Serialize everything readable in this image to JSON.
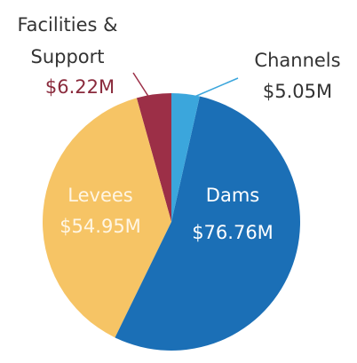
{
  "chart_data": {
    "type": "pie",
    "categories": [
      "Channels",
      "Dams",
      "Levees",
      "Facilities & Support"
    ],
    "values": [
      5.05,
      76.76,
      54.95,
      6.22
    ],
    "value_labels": [
      "$5.05M",
      "$76.76M",
      "$54.95M",
      "$6.22M"
    ],
    "colors": [
      "#3ba6dc",
      "#1b6fb6",
      "#f6c465",
      "#9c2f47"
    ]
  }
}
